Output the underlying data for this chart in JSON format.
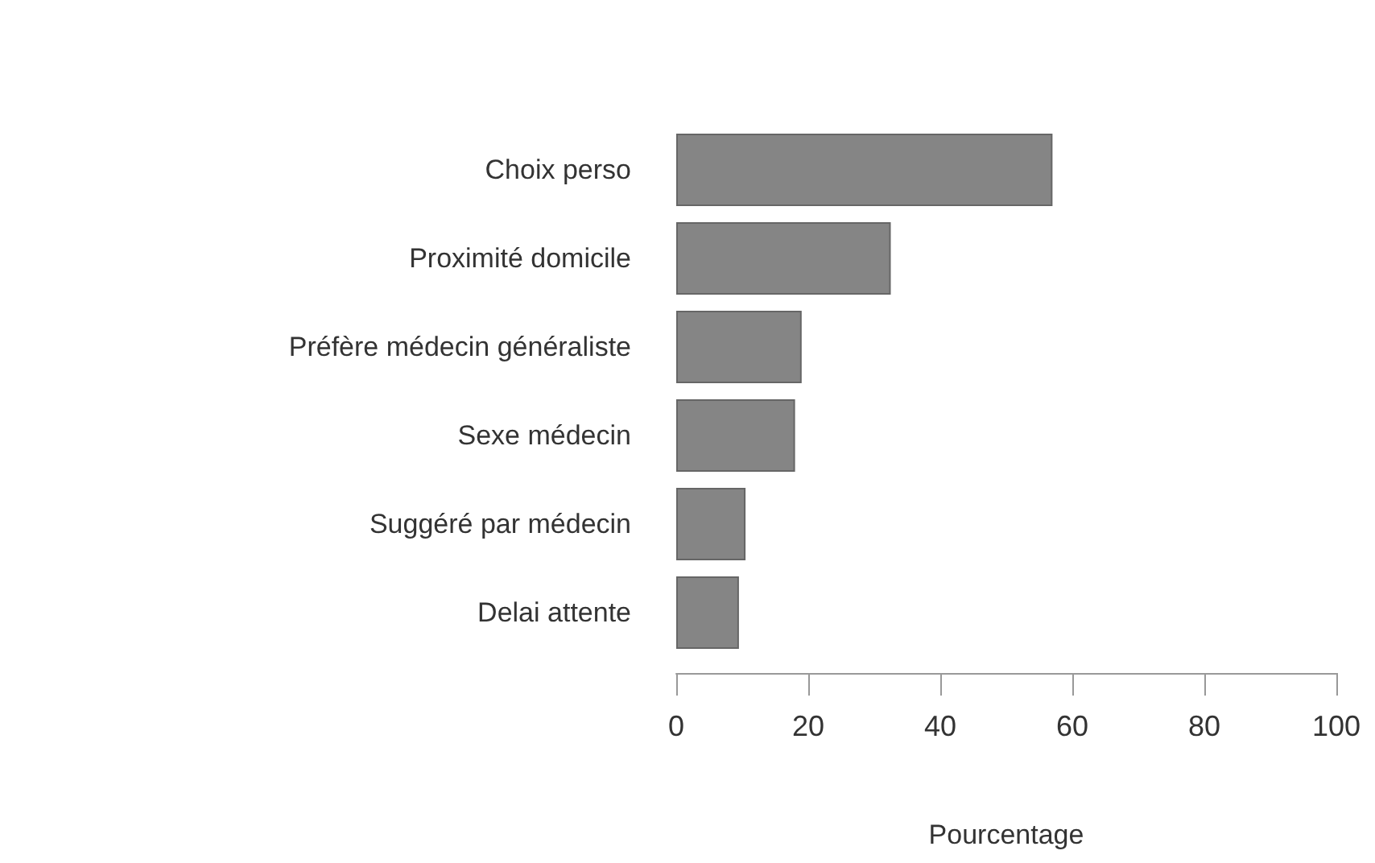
{
  "chart_data": {
    "type": "bar",
    "orientation": "horizontal",
    "xlabel": "Pourcentage",
    "categories": [
      "Choix perso",
      "Proximité domicile",
      "Préfère médecin généraliste",
      "Sexe médecin",
      "Suggéré par médecin",
      "Delai attente"
    ],
    "values": [
      57,
      32.5,
      19,
      18,
      10.5,
      9.5
    ],
    "color": "#858585",
    "xlim": [
      0,
      100
    ],
    "xticks": [
      0,
      20,
      40,
      60,
      80,
      100
    ],
    "grid": false
  }
}
